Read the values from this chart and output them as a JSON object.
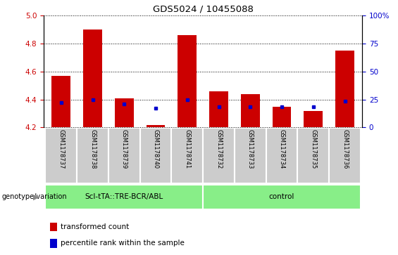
{
  "title": "GDS5024 / 10455088",
  "samples": [
    "GSM1178737",
    "GSM1178738",
    "GSM1178739",
    "GSM1178740",
    "GSM1178741",
    "GSM1178732",
    "GSM1178733",
    "GSM1178734",
    "GSM1178735",
    "GSM1178736"
  ],
  "red_values": [
    4.57,
    4.9,
    4.41,
    4.22,
    4.86,
    4.46,
    4.44,
    4.35,
    4.32,
    4.75
  ],
  "blue_values": [
    4.38,
    4.4,
    4.37,
    4.34,
    4.4,
    4.35,
    4.35,
    4.35,
    4.35,
    4.39
  ],
  "ylim": [
    4.2,
    5.0
  ],
  "yticks": [
    4.2,
    4.4,
    4.6,
    4.8,
    5.0
  ],
  "right_yticks": [
    0,
    25,
    50,
    75,
    100
  ],
  "right_ylim": [
    0,
    100
  ],
  "group1_label": "Scl-tTA::TRE-BCR/ABL",
  "group2_label": "control",
  "bar_color": "#cc0000",
  "dot_color": "#0000cc",
  "group_bg_color": "#88ee88",
  "sample_bg_color": "#cccccc",
  "legend_red_label": "transformed count",
  "legend_blue_label": "percentile rank within the sample",
  "ylabel_left_color": "#cc0000",
  "ylabel_right_color": "#0000cc",
  "bar_bottom": 4.2,
  "bar_width": 0.6
}
